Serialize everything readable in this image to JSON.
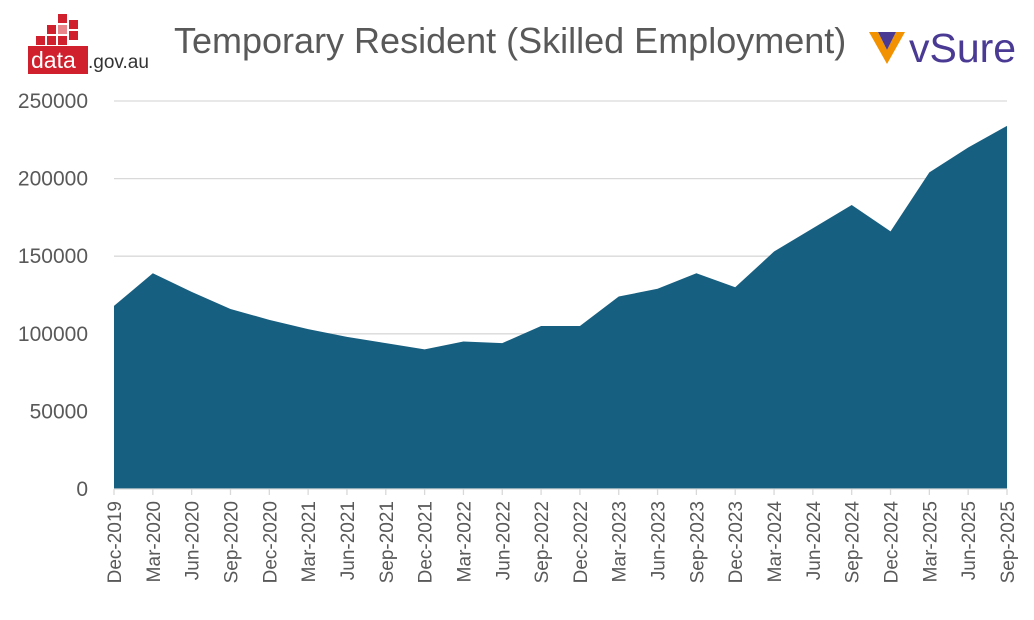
{
  "header": {
    "title": "Temporary Resident (Skilled Employment)",
    "left_logo_text": "data",
    "left_logo_suffix": ".gov.au",
    "right_logo_text": "vSure"
  },
  "colors": {
    "area_fill": "#175f80",
    "grid": "#d9d9d9",
    "axis_text": "#595959",
    "logo_red": "#d0202e",
    "logo_orange": "#f39200",
    "logo_purple": "#4a3a94"
  },
  "chart_data": {
    "type": "area",
    "title": "Temporary Resident (Skilled Employment)",
    "xlabel": "",
    "ylabel": "",
    "ylim": [
      0,
      250000
    ],
    "yticks": [
      0,
      50000,
      100000,
      150000,
      200000,
      250000
    ],
    "grid": true,
    "legend": "none",
    "x_tick_labels": [
      "Dec-2019",
      "Mar-2020",
      "Jun-2020",
      "Sep-2020",
      "Dec-2020",
      "Mar-2021",
      "Jun-2021",
      "Sep-2021",
      "Dec-2021",
      "Mar-2022",
      "Jun-2022",
      "Sep-2022",
      "Dec-2022",
      "Mar-2023",
      "Jun-2023",
      "Sep-2023",
      "Dec-2023",
      "Mar-2024",
      "Jun-2024",
      "Sep-2024",
      "Dec-2024",
      "Mar-2025",
      "Jun-2025",
      "Sep-2025"
    ],
    "series": [
      {
        "values": [
          118000,
          139000,
          127000,
          116000,
          109000,
          103000,
          98000,
          94000,
          90000,
          95000,
          94000,
          105000,
          105000,
          124000,
          129000,
          139000,
          130000,
          153000,
          168000,
          183000,
          166000,
          204000,
          220000,
          234000
        ]
      }
    ]
  }
}
